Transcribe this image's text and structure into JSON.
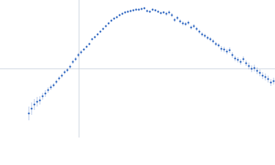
{
  "chart_data": {
    "type": "scatter",
    "x": [
      -0.73,
      -0.69,
      -0.65,
      -0.61,
      -0.57,
      -0.53,
      -0.49,
      -0.45,
      -0.41,
      -0.37,
      -0.33,
      -0.29,
      -0.25,
      -0.21,
      -0.17,
      -0.13,
      -0.09,
      -0.05,
      -0.01,
      0.03,
      0.07,
      0.11,
      0.15,
      0.19,
      0.23,
      0.27,
      0.31,
      0.35,
      0.39,
      0.43,
      0.47,
      0.51,
      0.55,
      0.59,
      0.63,
      0.67,
      0.71,
      0.75,
      0.79,
      0.83,
      0.87,
      0.91,
      0.95,
      0.99,
      1.03,
      1.07,
      1.11,
      1.15,
      1.19,
      1.23,
      1.27,
      1.31,
      1.35,
      1.39,
      1.43,
      1.47,
      1.51,
      1.55,
      1.59,
      1.63,
      1.67,
      1.71,
      1.75,
      1.79,
      1.83,
      1.87,
      1.91,
      1.95,
      1.99,
      2.03,
      2.07,
      2.11,
      2.15,
      2.19,
      2.23,
      2.27,
      2.31,
      2.35,
      2.39,
      2.43,
      2.47,
      2.51,
      2.55,
      2.59,
      2.63,
      2.67,
      2.71,
      2.75,
      2.79,
      2.83
    ],
    "values": [
      -0.65,
      -0.58,
      -0.52,
      -0.48,
      -0.46,
      -0.4,
      -0.36,
      -0.31,
      -0.27,
      -0.24,
      -0.19,
      -0.14,
      -0.1,
      -0.05,
      -0.02,
      0.03,
      0.1,
      0.14,
      0.2,
      0.24,
      0.28,
      0.32,
      0.36,
      0.43,
      0.46,
      0.5,
      0.54,
      0.58,
      0.62,
      0.66,
      0.7,
      0.73,
      0.75,
      0.78,
      0.8,
      0.82,
      0.83,
      0.84,
      0.85,
      0.86,
      0.86,
      0.87,
      0.88,
      0.84,
      0.83,
      0.86,
      0.85,
      0.83,
      0.81,
      0.82,
      0.8,
      0.82,
      0.78,
      0.71,
      0.74,
      0.69,
      0.66,
      0.65,
      0.67,
      0.6,
      0.62,
      0.58,
      0.54,
      0.5,
      0.48,
      0.45,
      0.43,
      0.4,
      0.36,
      0.34,
      0.29,
      0.28,
      0.25,
      0.27,
      0.2,
      0.15,
      0.13,
      0.1,
      0.14,
      0.08,
      0.04,
      0.0,
      0.01,
      -0.03,
      -0.06,
      -0.1,
      -0.12,
      -0.15,
      -0.2,
      -0.18
    ],
    "errors": [
      0.1,
      0.09,
      0.08,
      0.07,
      0.06,
      0.05,
      0.05,
      0.04,
      0.04,
      0.03,
      0.03,
      0.03,
      0.03,
      0.03,
      0.03,
      0.03,
      0.03,
      0.03,
      0.03,
      0.03,
      0.02,
      0.02,
      0.02,
      0.02,
      0.02,
      0.02,
      0.02,
      0.02,
      0.02,
      0.02,
      0.02,
      0.02,
      0.02,
      0.02,
      0.02,
      0.02,
      0.02,
      0.02,
      0.02,
      0.02,
      0.02,
      0.02,
      0.02,
      0.02,
      0.02,
      0.02,
      0.02,
      0.02,
      0.02,
      0.02,
      0.03,
      0.03,
      0.03,
      0.03,
      0.03,
      0.03,
      0.03,
      0.03,
      0.03,
      0.03,
      0.03,
      0.03,
      0.03,
      0.03,
      0.03,
      0.03,
      0.03,
      0.03,
      0.03,
      0.03,
      0.04,
      0.04,
      0.04,
      0.04,
      0.04,
      0.04,
      0.04,
      0.04,
      0.04,
      0.04,
      0.05,
      0.05,
      0.05,
      0.05,
      0.05,
      0.05,
      0.05,
      0.05,
      0.05,
      0.05
    ],
    "color": "#3a6fc4",
    "xlim": [
      -1.15,
      2.85
    ],
    "ylim": [
      -1,
      1
    ]
  }
}
